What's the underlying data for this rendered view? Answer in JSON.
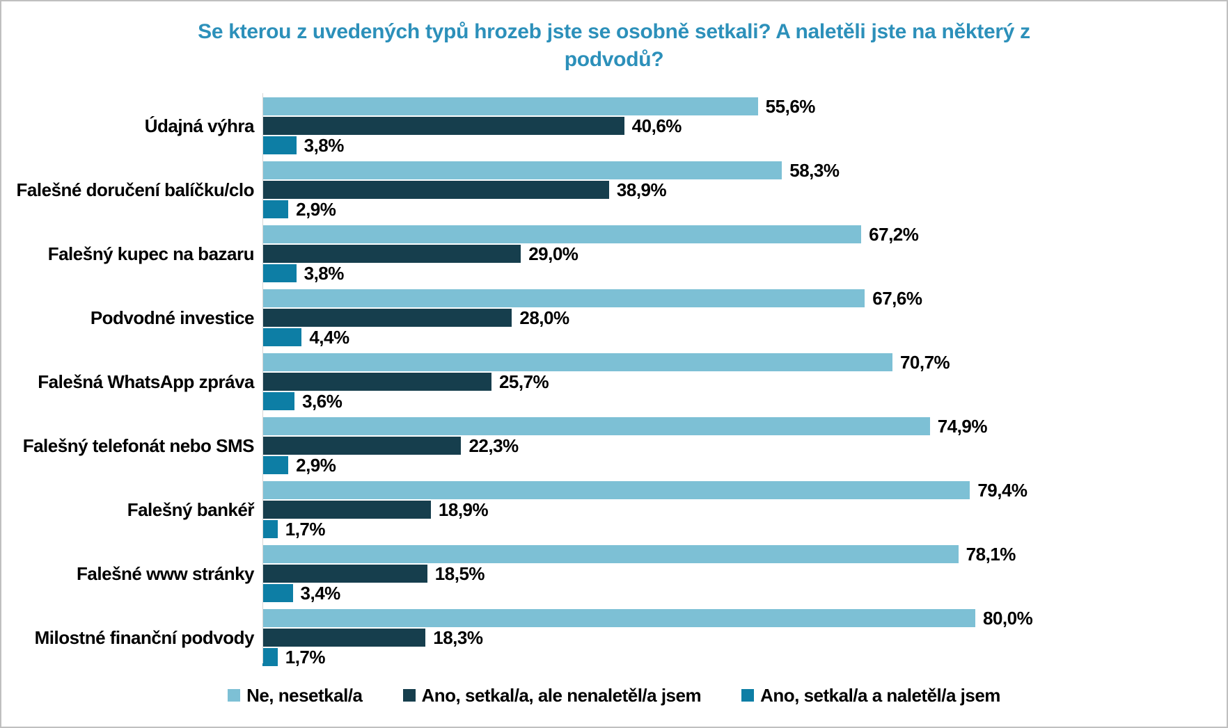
{
  "title": {
    "text": "Se kterou z uvedených typů hrozeb jste se osobně setkali? A naletěli jste na některý z podvodů?",
    "color": "#2c90ba"
  },
  "chart_data": {
    "type": "bar",
    "orientation": "horizontal",
    "grid": false,
    "legend_position": "bottom",
    "xlim": [
      0,
      105
    ],
    "axis_line_color": "#d6d6d6",
    "value_format": "czech-decimal-comma-percent",
    "categories": [
      "Údajná výhra",
      "Falešné doručení balíčku/clo",
      "Falešný kupec na bazaru",
      "Podvodné investice",
      "Falešná WhatsApp zpráva",
      "Falešný telefonát nebo SMS",
      "Falešný bankéř",
      "Falešné www stránky",
      "Milostné finanční podvody"
    ],
    "series": [
      {
        "name": "Ne, nesetkal/a",
        "color": "#7dc0d5",
        "values": [
          55.6,
          58.3,
          67.2,
          67.6,
          70.7,
          74.9,
          79.4,
          78.1,
          80.0
        ],
        "value_labels": [
          "55,6%",
          "58,3%",
          "67,2%",
          "67,6%",
          "70,7%",
          "74,9%",
          "79,4%",
          "78,1%",
          "80,0%"
        ]
      },
      {
        "name": "Ano, setkal/a, ale nenaletěl/a jsem",
        "color": "#163e4d",
        "values": [
          40.6,
          38.9,
          29.0,
          28.0,
          25.7,
          22.3,
          18.9,
          18.5,
          18.3
        ],
        "value_labels": [
          "40,6%",
          "38,9%",
          "29,0%",
          "28,0%",
          "25,7%",
          "22,3%",
          "18,9%",
          "18,5%",
          "18,3%"
        ]
      },
      {
        "name": "Ano, setkal/a a naletěl/a jsem",
        "color": "#0d7ea5",
        "values": [
          3.8,
          2.9,
          3.8,
          4.4,
          3.6,
          2.9,
          1.7,
          3.4,
          1.7
        ],
        "value_labels": [
          "3,8%",
          "2,9%",
          "3,8%",
          "4,4%",
          "3,6%",
          "2,9%",
          "1,7%",
          "3,4%",
          "1,7%"
        ]
      }
    ]
  }
}
